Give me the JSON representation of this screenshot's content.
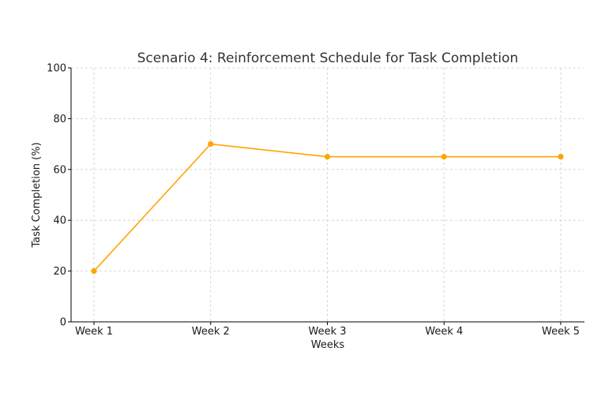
{
  "chart_data": {
    "type": "line",
    "title": "Scenario 4: Reinforcement Schedule for Task Completion",
    "xlabel": "Weeks",
    "ylabel": "Task Completion (%)",
    "categories": [
      "Week 1",
      "Week 2",
      "Week 3",
      "Week 4",
      "Week 5"
    ],
    "series": [
      {
        "values": [
          20,
          70,
          65,
          65,
          65
        ],
        "color": "#FFA500"
      }
    ],
    "ylim": [
      0,
      100
    ],
    "yticks": [
      0,
      20,
      40,
      60,
      80,
      100
    ],
    "grid": true,
    "legend": "none"
  }
}
